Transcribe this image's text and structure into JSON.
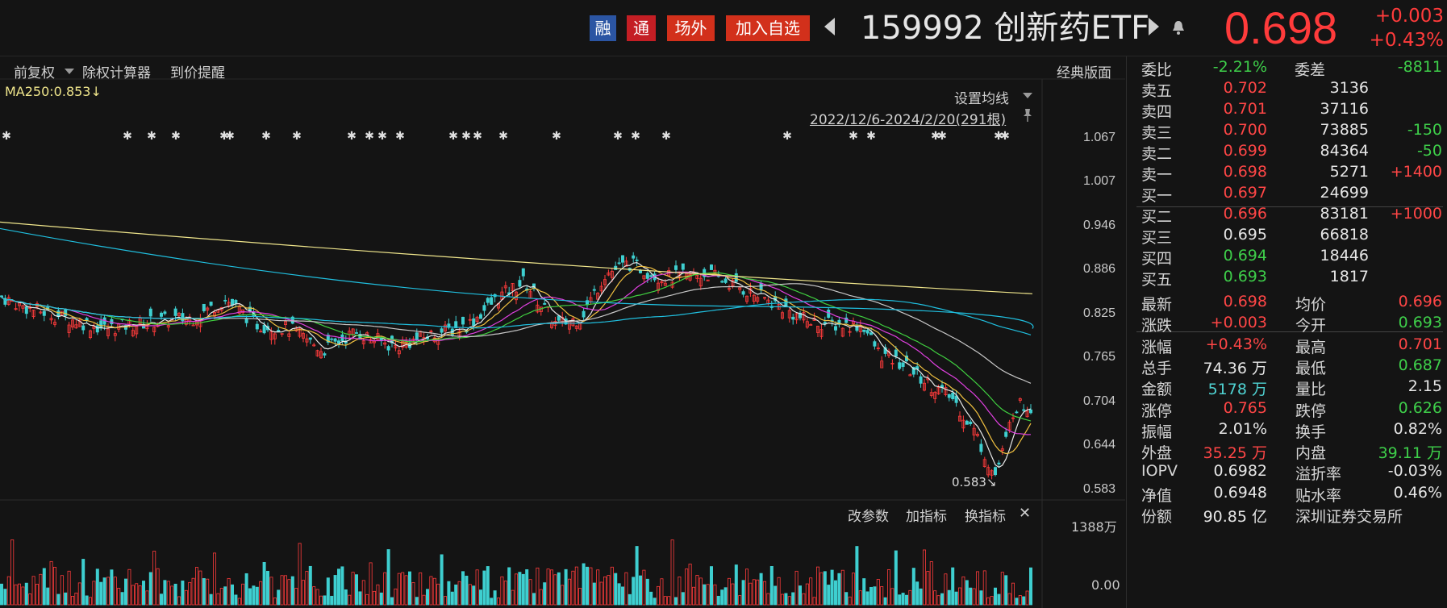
{
  "header": {
    "tags": [
      "融",
      "通",
      "场外"
    ],
    "add_watchlist": "加入自选",
    "ticker": "159992 创新药ETF",
    "price": "0.698",
    "change_abs": "+0.003",
    "change_pct": "+0.43%"
  },
  "toolbar": {
    "fuquan": "前复权",
    "calc": "除权计算器",
    "alert": "到价提醒",
    "classic": "经典版面"
  },
  "chart": {
    "ma250": "MA250:0.853↓",
    "set_ma": "设置均线",
    "date_range": "2022/12/6-2024/2/20(291根)",
    "low_label": "0.583",
    "y_ticks": [
      "1.067",
      "1.007",
      "0.946",
      "0.886",
      "0.825",
      "0.765",
      "0.704",
      "0.644",
      "0.583"
    ]
  },
  "indicator_bar": {
    "param": "改参数",
    "add": "加指标",
    "switch": "换指标",
    "close": "✕",
    "vol_max": "1388万",
    "vol_zero": "0.00"
  },
  "colors": {
    "up": "#ff3b3b",
    "down": "#3ecfd0",
    "ma5": "#e8e8e8",
    "ma10": "#f0c040",
    "ma20": "#e040e0",
    "ma30": "#40d040",
    "ma60": "#c8c8c8",
    "ma120": "#20c0e0",
    "ma250": "#f0e68c"
  },
  "panel": {
    "weibi": {
      "label": "委比",
      "value": "-2.21%"
    },
    "weicha": {
      "label": "委差",
      "value": "-8811"
    },
    "asks": [
      {
        "label": "卖五",
        "price": "0.702",
        "vol": "3136",
        "chg": ""
      },
      {
        "label": "卖四",
        "price": "0.701",
        "vol": "37116",
        "chg": ""
      },
      {
        "label": "卖三",
        "price": "0.700",
        "vol": "73885",
        "chg": "-150"
      },
      {
        "label": "卖二",
        "price": "0.699",
        "vol": "84364",
        "chg": "-50"
      },
      {
        "label": "卖一",
        "price": "0.698",
        "vol": "5271",
        "chg": "+1400"
      }
    ],
    "bids": [
      {
        "label": "买一",
        "price": "0.697",
        "vol": "24699",
        "chg": ""
      },
      {
        "label": "买二",
        "price": "0.696",
        "vol": "83181",
        "chg": "+1000"
      },
      {
        "label": "买三",
        "price": "0.695",
        "vol": "66818",
        "chg": ""
      },
      {
        "label": "买四",
        "price": "0.694",
        "vol": "18446",
        "chg": ""
      },
      {
        "label": "买五",
        "price": "0.693",
        "vol": "1817",
        "chg": ""
      }
    ],
    "stats": [
      {
        "l1": "最新",
        "v1": "0.698",
        "c1": "red",
        "l2": "均价",
        "v2": "0.696",
        "c2": "red"
      },
      {
        "l1": "涨跌",
        "v1": "+0.003",
        "c1": "red",
        "l2": "今开",
        "v2": "0.693",
        "c2": "green"
      },
      {
        "l1": "涨幅",
        "v1": "+0.43%",
        "c1": "red",
        "l2": "最高",
        "v2": "0.701",
        "c2": "red"
      },
      {
        "l1": "总手",
        "v1": "74.36 万",
        "c1": "white",
        "l2": "最低",
        "v2": "0.687",
        "c2": "green"
      },
      {
        "l1": "金额",
        "v1": "5178 万",
        "c1": "cyan",
        "l2": "量比",
        "v2": "2.15",
        "c2": "white"
      },
      {
        "l1": "涨停",
        "v1": "0.765",
        "c1": "red",
        "l2": "跌停",
        "v2": "0.626",
        "c2": "green"
      },
      {
        "l1": "振幅",
        "v1": "2.01%",
        "c1": "white",
        "l2": "换手",
        "v2": "0.82%",
        "c2": "white"
      },
      {
        "l1": "外盘",
        "v1": "35.25 万",
        "c1": "red",
        "l2": "内盘",
        "v2": "39.11 万",
        "c2": "green"
      },
      {
        "l1": "IOPV",
        "v1": "0.6982",
        "c1": "white",
        "l2": "溢折率",
        "v2": "-0.03%",
        "c2": "white"
      },
      {
        "l1": "净值",
        "v1": "0.6948",
        "c1": "white",
        "l2": "贴水率",
        "v2": "0.46%",
        "c2": "white"
      },
      {
        "l1": "份额",
        "v1": "90.85 亿",
        "c1": "white",
        "l2": "深圳证券交易所",
        "v2": "",
        "c2": "white"
      }
    ]
  }
}
